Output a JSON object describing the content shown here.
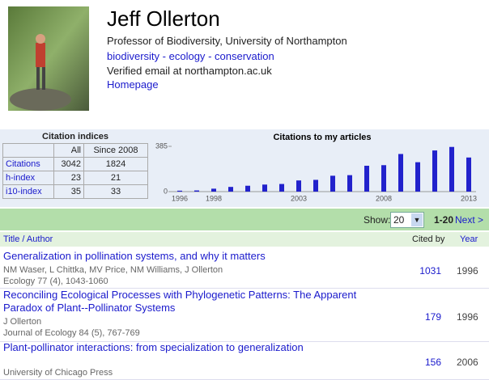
{
  "profile": {
    "name": "Jeff Ollerton",
    "affiliation": "Professor of Biodiversity, University of Northampton",
    "interests": [
      "biodiversity",
      "ecology",
      "conservation"
    ],
    "interest_separator": "-",
    "email": "Verified email at northampton.ac.uk",
    "homepage": "Homepage"
  },
  "citation_indices": {
    "title": "Citation indices",
    "columns": [
      "All",
      "Since 2008"
    ],
    "rows": [
      [
        "Citations",
        "3042",
        "1824"
      ],
      [
        "h-index",
        "23",
        "21"
      ],
      [
        "i10-index",
        "35",
        "33"
      ]
    ]
  },
  "chart_data": {
    "type": "bar",
    "title": "Citations to my articles",
    "categories": [
      "1996",
      null,
      "1998",
      null,
      null,
      null,
      null,
      "2003",
      null,
      null,
      null,
      null,
      "2008",
      null,
      null,
      null,
      null,
      "2013"
    ],
    "values": [
      8,
      10,
      25,
      40,
      50,
      60,
      65,
      95,
      100,
      135,
      140,
      220,
      225,
      320,
      250,
      350,
      380,
      290
    ],
    "color": "#2222cc",
    "ylim": [
      0,
      385
    ],
    "yticks": [
      0,
      385
    ]
  },
  "paging": {
    "show_label": "Show:",
    "page_size": "20",
    "range": "1-20",
    "next": "Next >"
  },
  "articles": {
    "columns": [
      "Title / Author",
      "Cited by",
      "Year"
    ],
    "rows": [
      {
        "title": "Generalization in pollination systems, and why it matters",
        "authors": "NM Waser, L Chittka, MV Price, NM Williams, J Ollerton",
        "venue": "Ecology 77 (4), 1043-1060",
        "cited_by": "1031",
        "year": "1996"
      },
      {
        "title": "Reconciling Ecological Processes with Phylogenetic Patterns: The Apparent Paradox of Plant--Pollinator Systems",
        "authors": "J Ollerton",
        "venue": "Journal of Ecology 84 (5), 767-769",
        "cited_by": "179",
        "year": "1996"
      },
      {
        "title": "Plant-pollinator interactions: from specialization to generalization",
        "authors": null,
        "venue": "University of Chicago Press",
        "cited_by": "156",
        "year": "2006"
      }
    ]
  }
}
